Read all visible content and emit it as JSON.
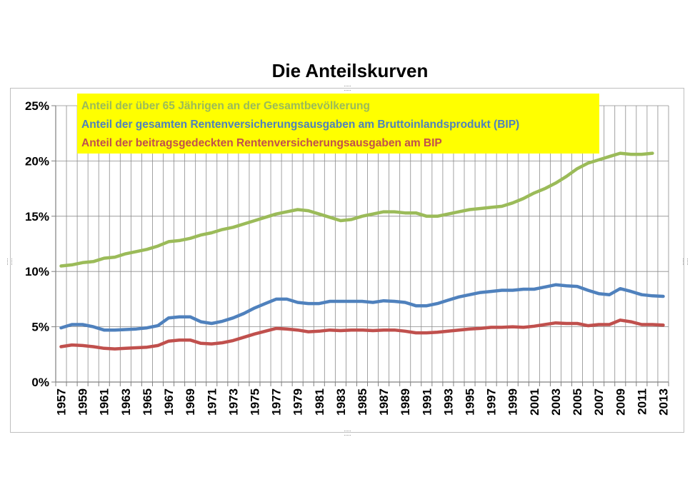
{
  "title": "Die Anteilskurven",
  "chart_data": {
    "type": "line",
    "title": "Die Anteilskurven",
    "xlabel": "",
    "ylabel": "",
    "ylim": [
      0,
      25
    ],
    "ytick_labels": [
      "0%",
      "5%",
      "10%",
      "15%",
      "20%",
      "25%"
    ],
    "xlim": [
      1957,
      2013
    ],
    "xtick_labels": [
      "1957",
      "1959",
      "1961",
      "1963",
      "1965",
      "1967",
      "1969",
      "1971",
      "1973",
      "1975",
      "1977",
      "1979",
      "1981",
      "1983",
      "1985",
      "1987",
      "1989",
      "1991",
      "1993",
      "1995",
      "1997",
      "1999",
      "2001",
      "2003",
      "2005",
      "2007",
      "2009",
      "2011",
      "2013"
    ],
    "grid": true,
    "legend_position": "top-left",
    "series": [
      {
        "name": "Anteil der über 65 Jährigen an der Gesamtbevölkerung",
        "color": "#9bbb59",
        "x": [
          1957,
          1958,
          1959,
          1960,
          1961,
          1962,
          1963,
          1964,
          1965,
          1966,
          1967,
          1968,
          1969,
          1970,
          1971,
          1972,
          1973,
          1974,
          1975,
          1976,
          1977,
          1978,
          1979,
          1980,
          1981,
          1982,
          1983,
          1984,
          1985,
          1986,
          1987,
          1988,
          1989,
          1990,
          1991,
          1992,
          1993,
          1994,
          1995,
          1996,
          1997,
          1998,
          1999,
          2000,
          2001,
          2002,
          2003,
          2004,
          2005,
          2006,
          2007,
          2008,
          2009,
          2010,
          2011,
          2012
        ],
        "values": [
          10.5,
          10.6,
          10.8,
          10.9,
          11.2,
          11.3,
          11.6,
          11.8,
          12.0,
          12.3,
          12.7,
          12.8,
          13.0,
          13.3,
          13.5,
          13.8,
          14.0,
          14.3,
          14.6,
          14.9,
          15.2,
          15.4,
          15.6,
          15.5,
          15.2,
          14.9,
          14.6,
          14.7,
          15.0,
          15.2,
          15.4,
          15.4,
          15.3,
          15.3,
          15.0,
          15.0,
          15.2,
          15.4,
          15.6,
          15.7,
          15.8,
          15.9,
          16.2,
          16.6,
          17.1,
          17.5,
          18.0,
          18.6,
          19.3,
          19.8,
          20.1,
          20.4,
          20.7,
          20.6,
          20.6,
          20.7
        ]
      },
      {
        "name": "Anteil der gesamten Rentenversicherungsausgaben am Bruttoinlandsprodukt (BIP)",
        "color": "#4f81bd",
        "x": [
          1957,
          1958,
          1959,
          1960,
          1961,
          1962,
          1963,
          1964,
          1965,
          1966,
          1967,
          1968,
          1969,
          1970,
          1971,
          1972,
          1973,
          1974,
          1975,
          1976,
          1977,
          1978,
          1979,
          1980,
          1981,
          1982,
          1983,
          1984,
          1985,
          1986,
          1987,
          1988,
          1989,
          1990,
          1991,
          1992,
          1993,
          1994,
          1995,
          1996,
          1997,
          1998,
          1999,
          2000,
          2001,
          2002,
          2003,
          2004,
          2005,
          2006,
          2007,
          2008,
          2009,
          2010,
          2011,
          2012,
          2013
        ],
        "values": [
          4.9,
          5.2,
          5.2,
          5.0,
          4.7,
          4.7,
          4.75,
          4.8,
          4.9,
          5.1,
          5.8,
          5.9,
          5.9,
          5.45,
          5.3,
          5.5,
          5.8,
          6.2,
          6.7,
          7.1,
          7.5,
          7.5,
          7.2,
          7.1,
          7.1,
          7.3,
          7.3,
          7.3,
          7.3,
          7.2,
          7.35,
          7.3,
          7.2,
          6.9,
          6.9,
          7.1,
          7.4,
          7.7,
          7.9,
          8.1,
          8.2,
          8.3,
          8.3,
          8.4,
          8.4,
          8.6,
          8.8,
          8.7,
          8.65,
          8.3,
          8.0,
          7.9,
          8.45,
          8.2,
          7.9,
          7.8,
          7.75
        ]
      },
      {
        "name": "Anteil der beitragsgedeckten Rentenversicherungsausgaben am BIP",
        "color": "#c0504d",
        "x": [
          1957,
          1958,
          1959,
          1960,
          1961,
          1962,
          1963,
          1964,
          1965,
          1966,
          1967,
          1968,
          1969,
          1970,
          1971,
          1972,
          1973,
          1974,
          1975,
          1976,
          1977,
          1978,
          1979,
          1980,
          1981,
          1982,
          1983,
          1984,
          1985,
          1986,
          1987,
          1988,
          1989,
          1990,
          1991,
          1992,
          1993,
          1994,
          1995,
          1996,
          1997,
          1998,
          1999,
          2000,
          2001,
          2002,
          2003,
          2004,
          2005,
          2006,
          2007,
          2008,
          2009,
          2010,
          2011,
          2012,
          2013
        ],
        "values": [
          3.2,
          3.35,
          3.3,
          3.2,
          3.05,
          3.0,
          3.05,
          3.1,
          3.15,
          3.3,
          3.7,
          3.8,
          3.8,
          3.5,
          3.45,
          3.55,
          3.75,
          4.05,
          4.35,
          4.6,
          4.85,
          4.8,
          4.7,
          4.55,
          4.6,
          4.7,
          4.65,
          4.7,
          4.7,
          4.65,
          4.7,
          4.7,
          4.6,
          4.45,
          4.45,
          4.5,
          4.6,
          4.7,
          4.8,
          4.85,
          4.95,
          4.95,
          5.0,
          4.95,
          5.05,
          5.2,
          5.35,
          5.3,
          5.3,
          5.1,
          5.2,
          5.2,
          5.6,
          5.45,
          5.2,
          5.2,
          5.15
        ]
      }
    ]
  }
}
